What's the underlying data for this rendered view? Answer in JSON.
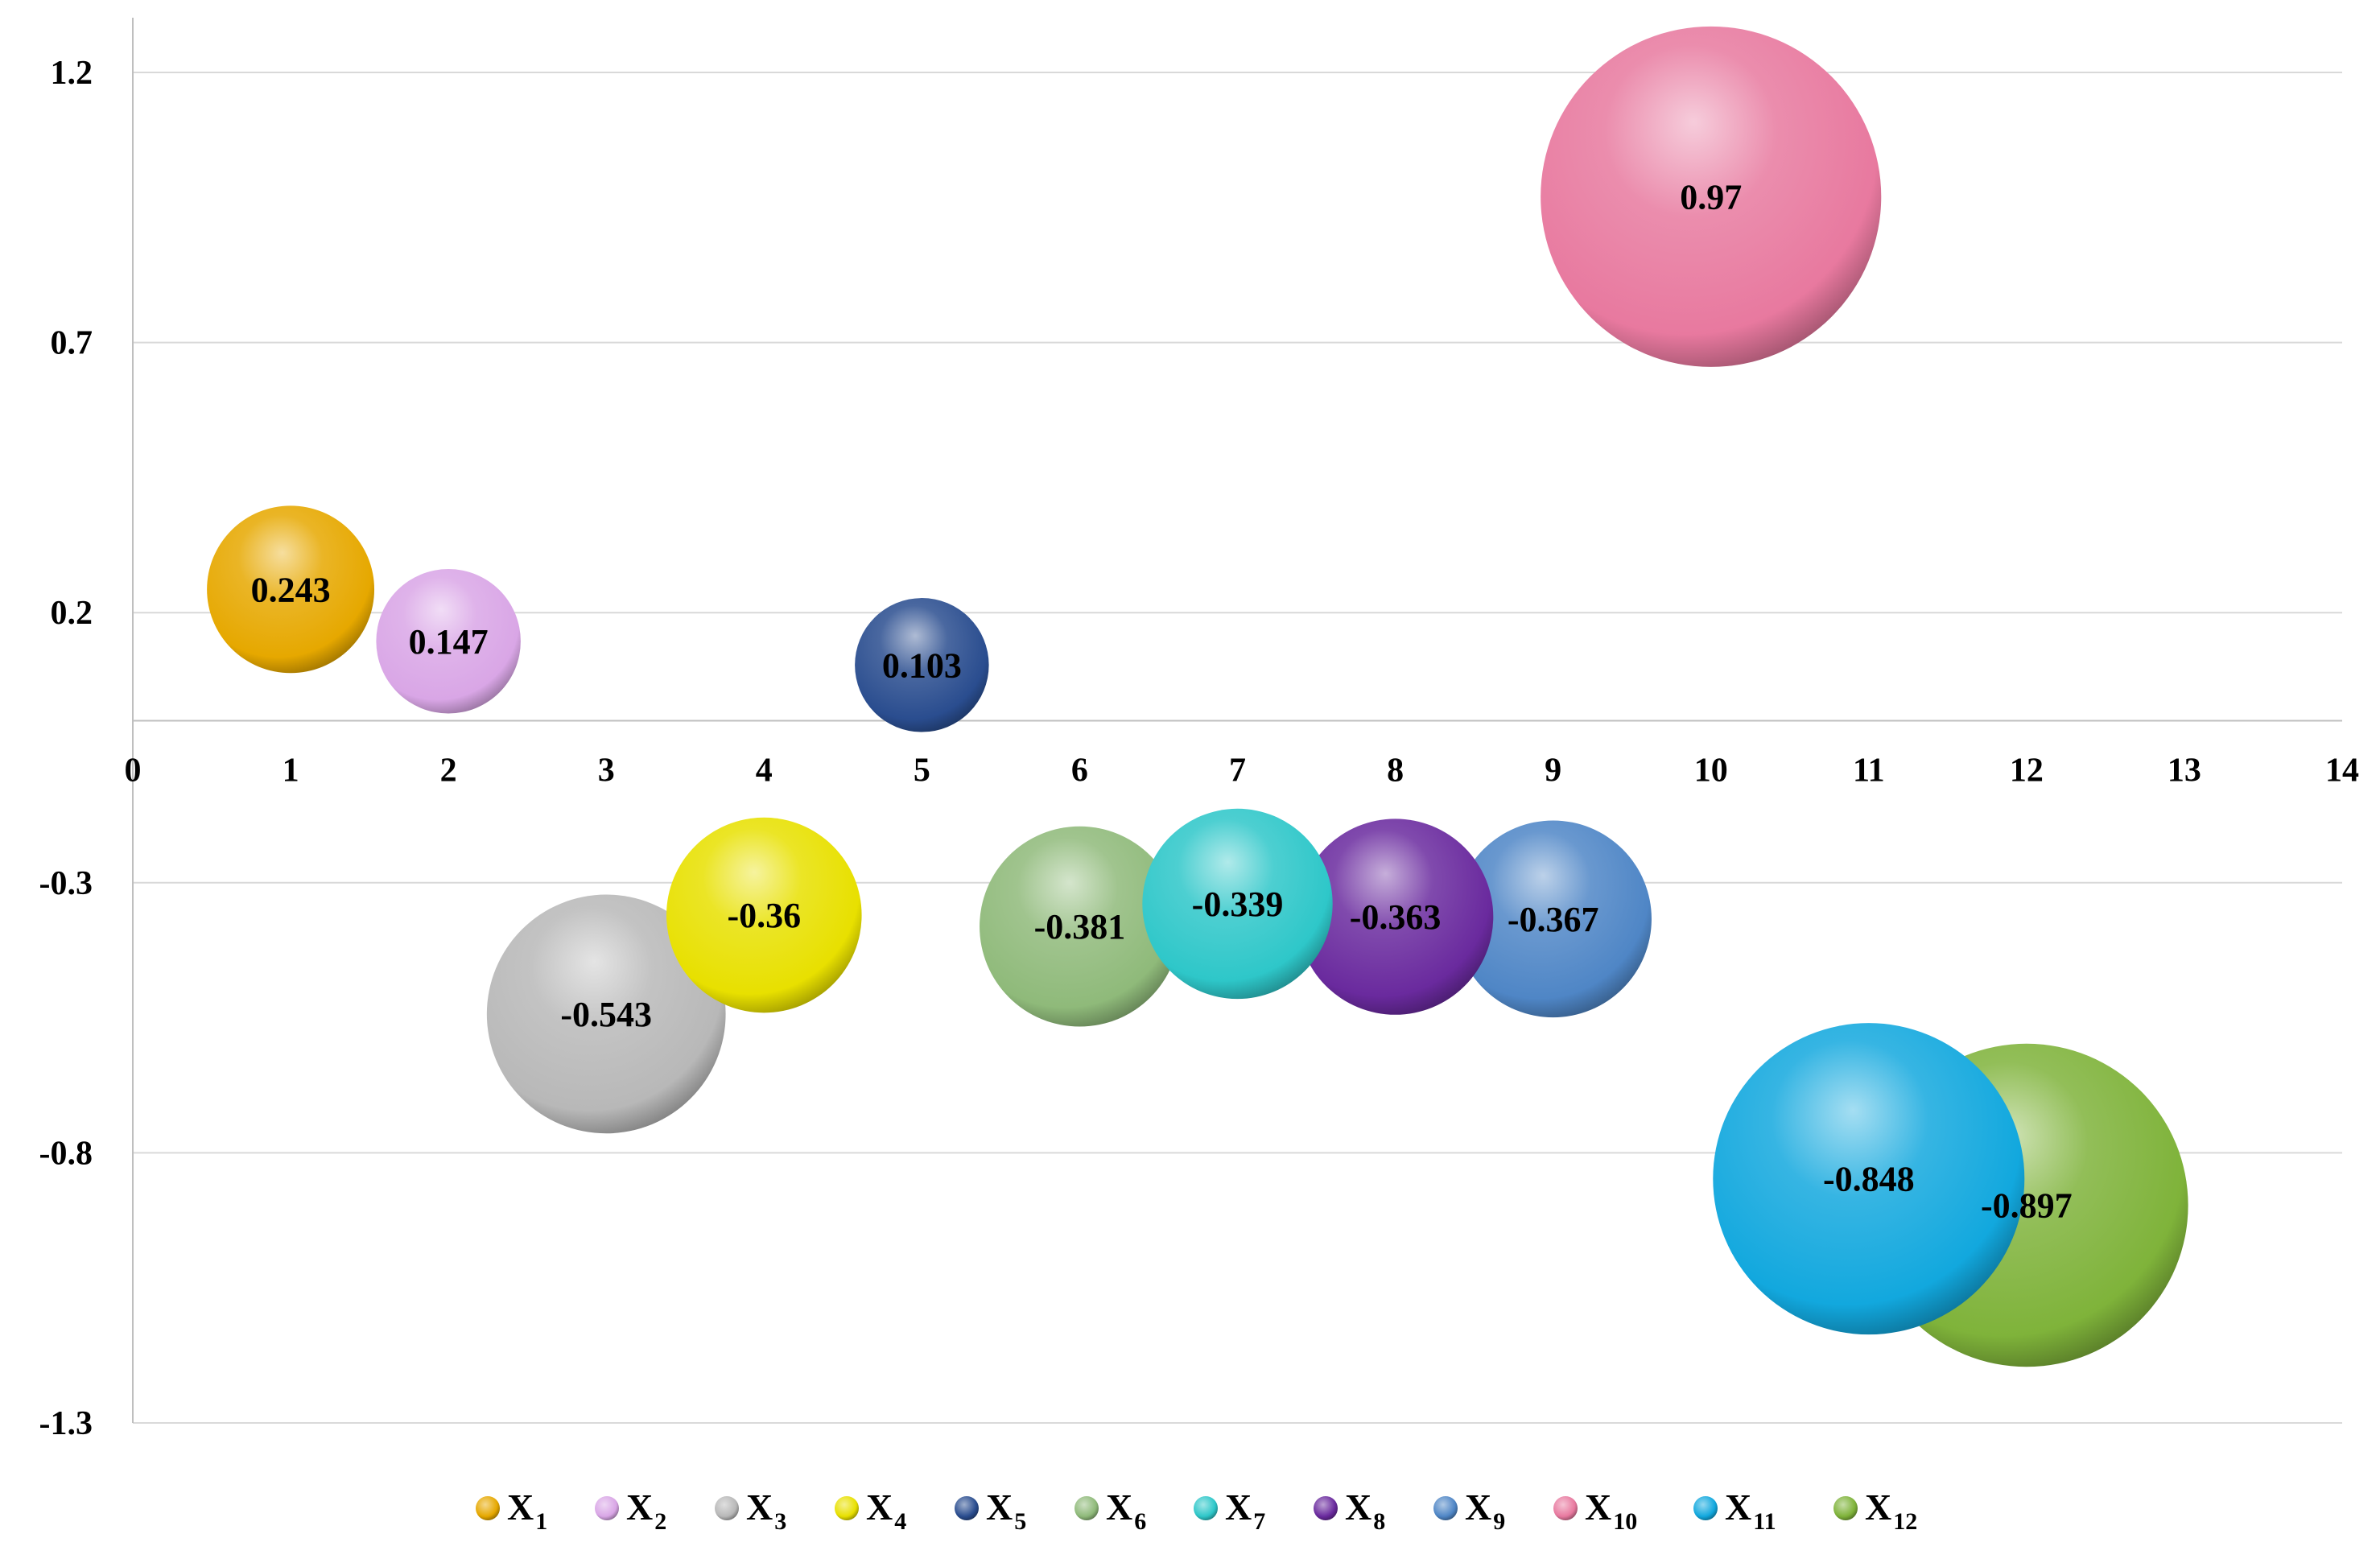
{
  "chart_data": {
    "type": "bubble",
    "xlim": [
      0,
      14
    ],
    "ylim": [
      -1.3,
      1.3
    ],
    "x_ticks": [
      "0",
      "1",
      "2",
      "3",
      "4",
      "5",
      "6",
      "7",
      "8",
      "9",
      "10",
      "11",
      "12",
      "13",
      "14"
    ],
    "y_ticks": [
      "1.2",
      "0.7",
      "0.2",
      "-0.3",
      "-0.8",
      "-1.3"
    ],
    "grid": "horizontal",
    "legend_position": "bottom",
    "series": [
      {
        "name": "X",
        "sub": "1",
        "x": 1,
        "y": 0.243,
        "label": "0.243",
        "color": "#e6a800"
      },
      {
        "name": "X",
        "sub": "2",
        "x": 2,
        "y": 0.147,
        "label": "0.147",
        "color": "#d9a6e6"
      },
      {
        "name": "X",
        "sub": "3",
        "x": 3,
        "y": -0.543,
        "label": "-0.543",
        "color": "#b8b8b8"
      },
      {
        "name": "X",
        "sub": "4",
        "x": 4,
        "y": -0.36,
        "label": "-0.36",
        "color": "#e8e000"
      },
      {
        "name": "X",
        "sub": "5",
        "x": 5,
        "y": 0.103,
        "label": "0.103",
        "color": "#2a4d8f"
      },
      {
        "name": "X",
        "sub": "6",
        "x": 6,
        "y": -0.381,
        "label": "-0.381",
        "color": "#8fba7a"
      },
      {
        "name": "X",
        "sub": "7",
        "x": 7,
        "y": -0.339,
        "label": "-0.339",
        "color": "#2ec7c9"
      },
      {
        "name": "X",
        "sub": "8",
        "x": 8,
        "y": -0.363,
        "label": "-0.363",
        "color": "#6a2a9e"
      },
      {
        "name": "X",
        "sub": "9",
        "x": 9,
        "y": -0.367,
        "label": "-0.367",
        "color": "#4f86c6"
      },
      {
        "name": "X",
        "sub": "10",
        "x": 10,
        "y": 0.97,
        "label": "0.97",
        "color": "#e8799f"
      },
      {
        "name": "X",
        "sub": "11",
        "x": 11,
        "y": -0.848,
        "label": "-0.848",
        "color": "#12a8de"
      },
      {
        "name": "X",
        "sub": "12",
        "x": 12,
        "y": -0.897,
        "label": "-0.897",
        "color": "#7fb33a"
      }
    ]
  }
}
